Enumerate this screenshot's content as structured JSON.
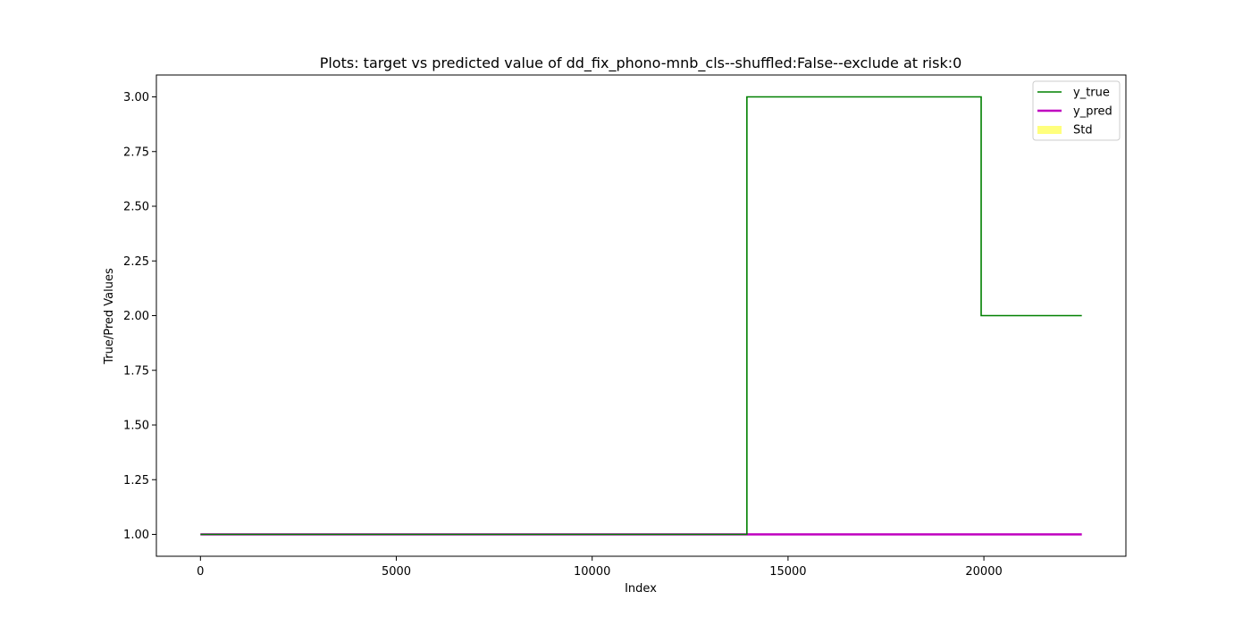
{
  "chart_data": {
    "type": "line",
    "title": "Plots: target vs predicted value of dd_fix_phono-mnb_cls--shuffled:False--exclude at risk:0",
    "xlabel": "Index",
    "ylabel": "True/Pred Values",
    "xlim": [
      -1125,
      23625
    ],
    "ylim": [
      0.9,
      3.1
    ],
    "xticks": [
      0,
      5000,
      10000,
      15000,
      20000
    ],
    "yticks": [
      1.0,
      1.25,
      1.5,
      1.75,
      2.0,
      2.25,
      2.5,
      2.75,
      3.0
    ],
    "xtick_labels": [
      "0",
      "5000",
      "10000",
      "15000",
      "20000"
    ],
    "ytick_labels": [
      "1.00",
      "1.25",
      "1.50",
      "1.75",
      "2.00",
      "2.25",
      "2.50",
      "2.75",
      "3.00"
    ],
    "grid": false,
    "legend_position": "top-right",
    "series": [
      {
        "name": "y_true",
        "color": "#008000",
        "line_style": "step",
        "x": [
          0,
          13950,
          13950,
          19930,
          19930,
          22500
        ],
        "values": [
          1,
          1,
          3,
          3,
          2,
          2
        ]
      },
      {
        "name": "y_pred",
        "color": "#bf00bf",
        "line_style": "solid",
        "x": [
          0,
          22500
        ],
        "values": [
          1,
          1
        ]
      },
      {
        "name": "Std",
        "color": "#ffff66",
        "line_style": "band",
        "x": [
          0,
          22500
        ],
        "lower": [
          1,
          1
        ],
        "upper": [
          1,
          1
        ]
      }
    ]
  }
}
